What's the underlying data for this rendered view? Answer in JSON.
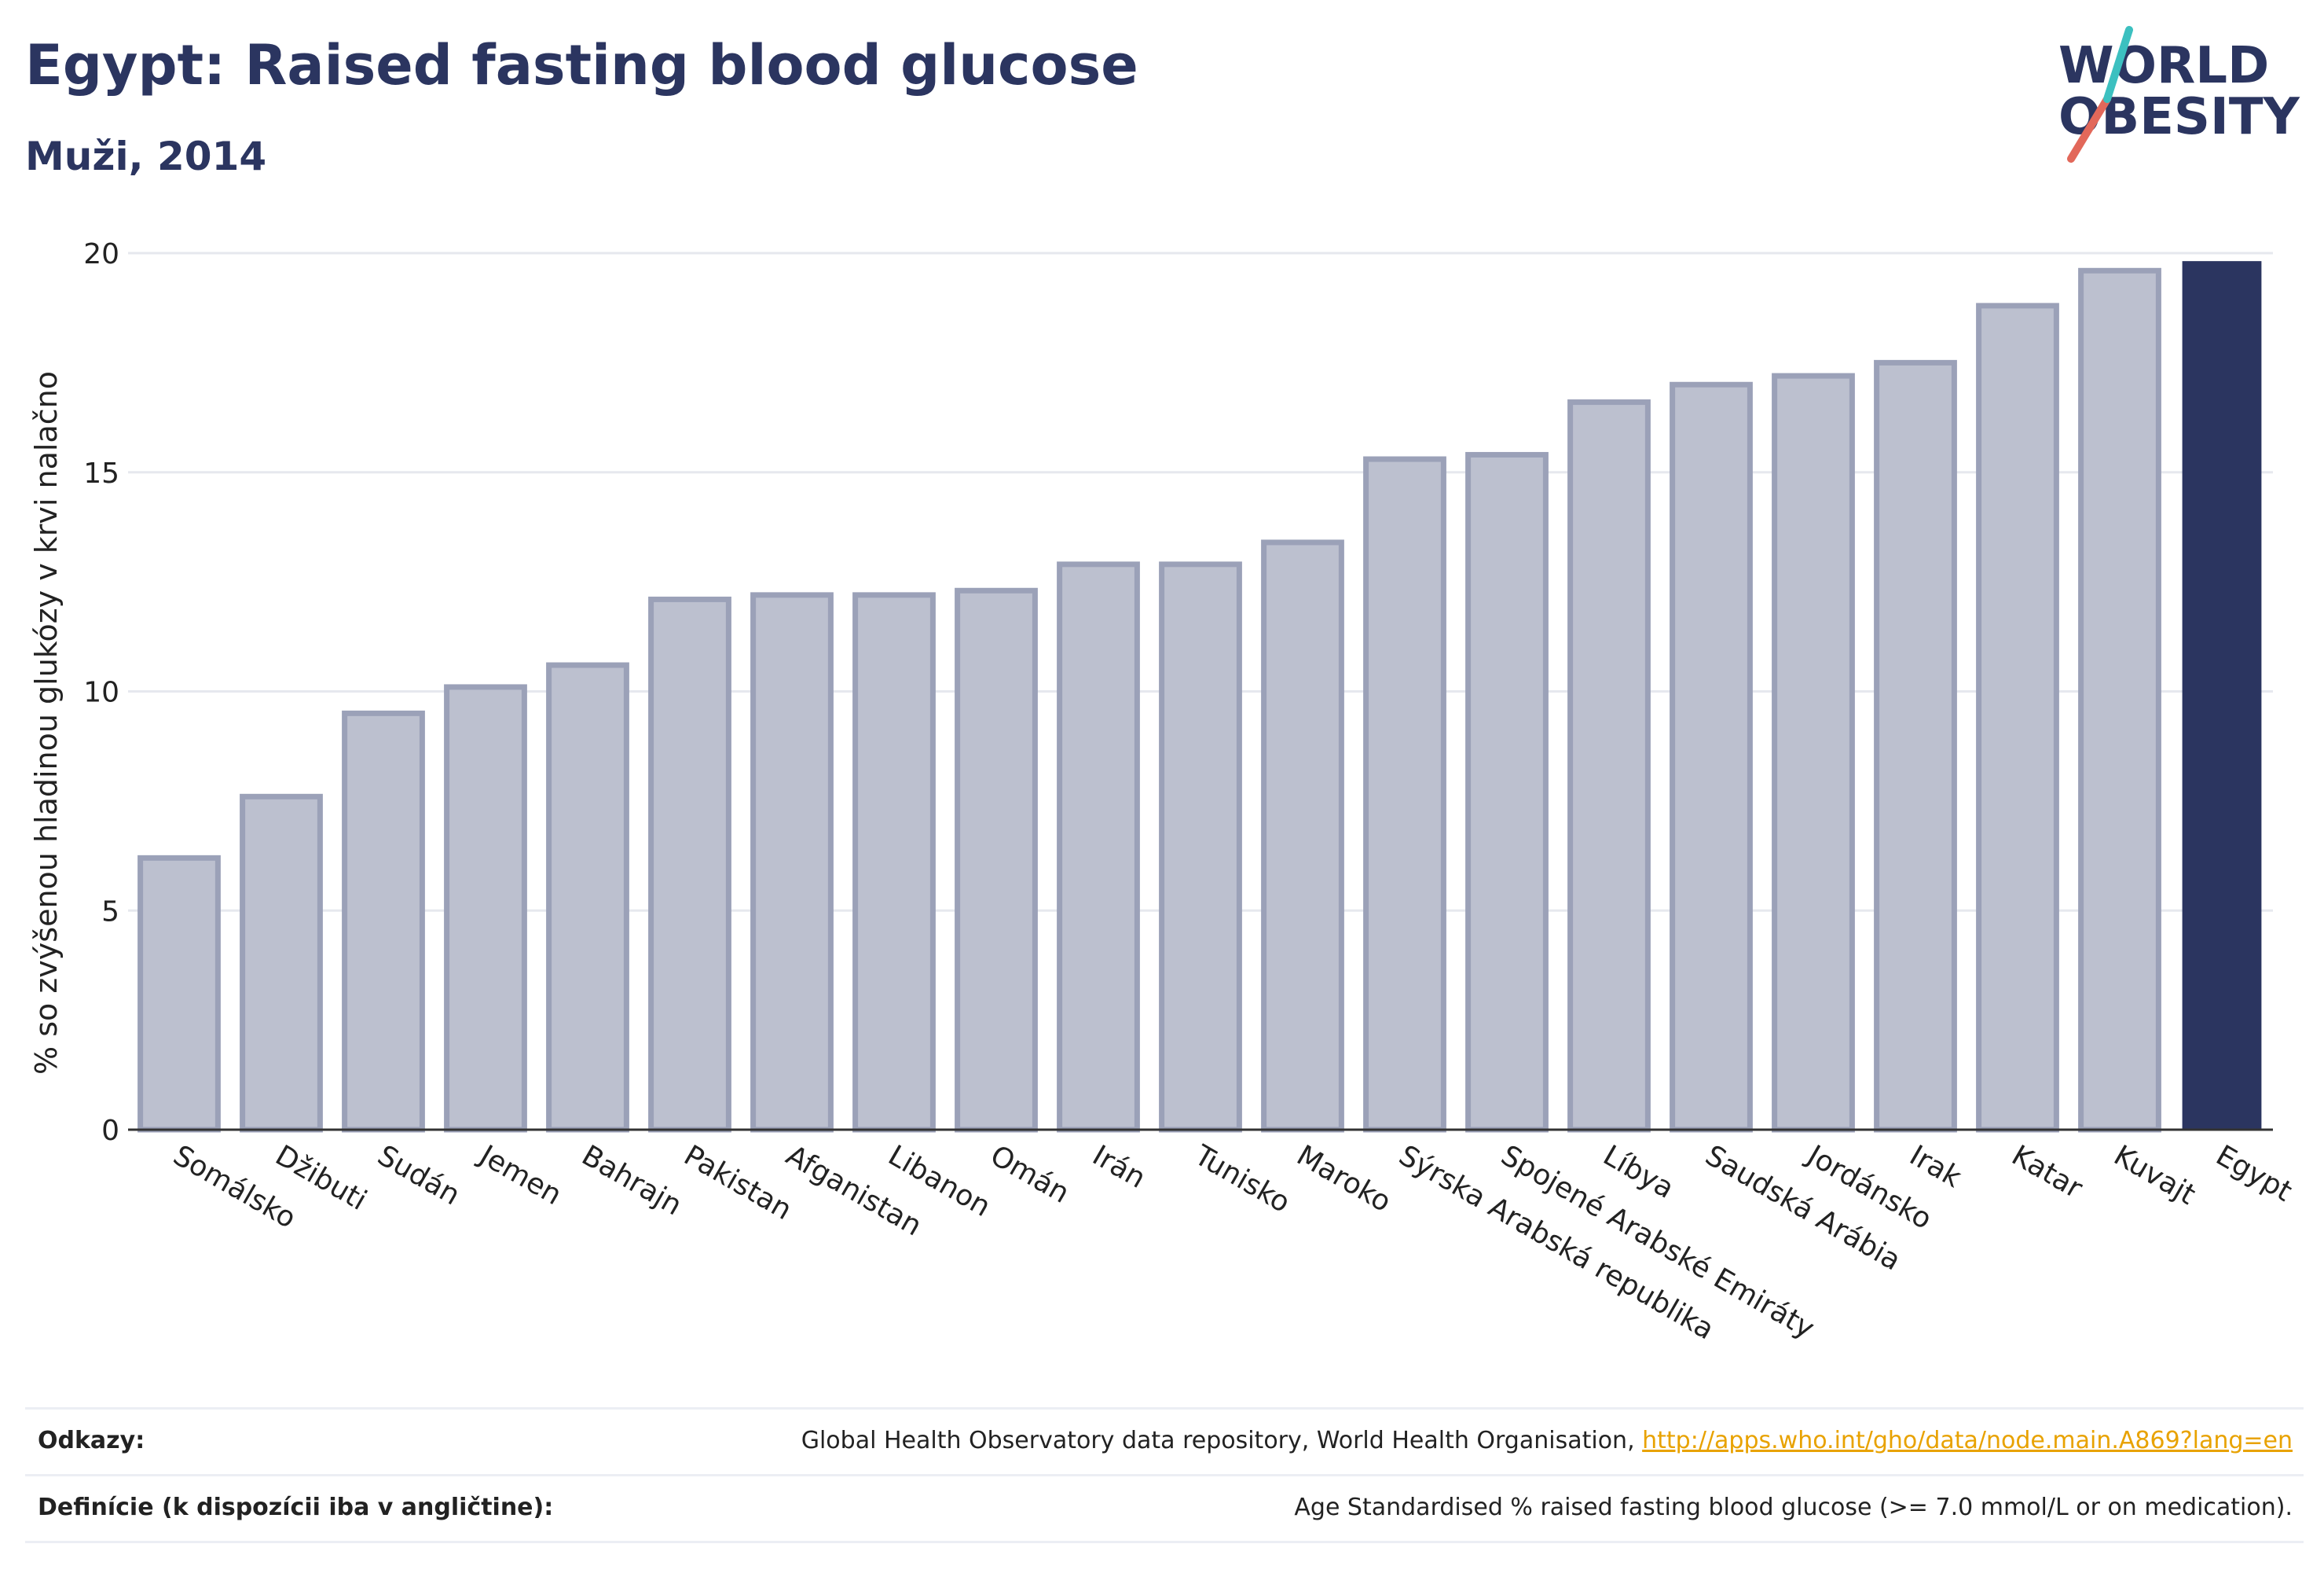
{
  "header": {
    "title": "Egypt: Raised fasting blood glucose",
    "subtitle": "Muži, 2014"
  },
  "logo": {
    "line1": "WORLD",
    "line2": "OBESITY",
    "text_color": "#2b3560",
    "slash_colors": [
      "#e2685a",
      "#3cc0c0"
    ]
  },
  "colors": {
    "bar_default": "#bcc0cf",
    "bar_default_stroke": "#9ba1b8",
    "bar_highlight": "#2b3560"
  },
  "chart_data": {
    "type": "bar",
    "title": "Egypt: Raised fasting blood glucose",
    "subtitle": "Muži, 2014",
    "xlabel": "",
    "ylabel": "% so zvýšenou hladinou glukózy v krvi nalačno",
    "ylim": [
      0,
      20
    ],
    "yticks": [
      0,
      5,
      10,
      15,
      20
    ],
    "grid": true,
    "highlight": "Egypt",
    "categories": [
      "Somálsko",
      "Džibuti",
      "Sudán",
      "Jemen",
      "Bahrajn",
      "Pakistan",
      "Afganistan",
      "Libanon",
      "Omán",
      "Irán",
      "Tunisko",
      "Maroko",
      "Sýrska Arabská republika",
      "Spojené Arabské Emiráty",
      "Líbya",
      "Saudská Arábia",
      "Jordánsko",
      "Irak",
      "Katar",
      "Kuvajt",
      "Egypt"
    ],
    "values": [
      6.2,
      7.6,
      9.5,
      10.1,
      10.6,
      12.1,
      12.2,
      12.2,
      12.3,
      12.9,
      12.9,
      13.4,
      15.3,
      15.4,
      16.6,
      17.0,
      17.2,
      17.5,
      18.8,
      19.6,
      19.8
    ]
  },
  "footer": {
    "sources_label": "Odkazy:",
    "sources_text": "Global Health Observatory data repository, World Health Organisation, ",
    "sources_link": "http://apps.who.int/gho/data/node.main.A869?lang=en",
    "definitions_label": "Definície (k dispozícii iba v angličtine):",
    "definitions_text": "Age Standardised % raised fasting blood glucose (>= 7.0 mmol/L or on medication)."
  }
}
